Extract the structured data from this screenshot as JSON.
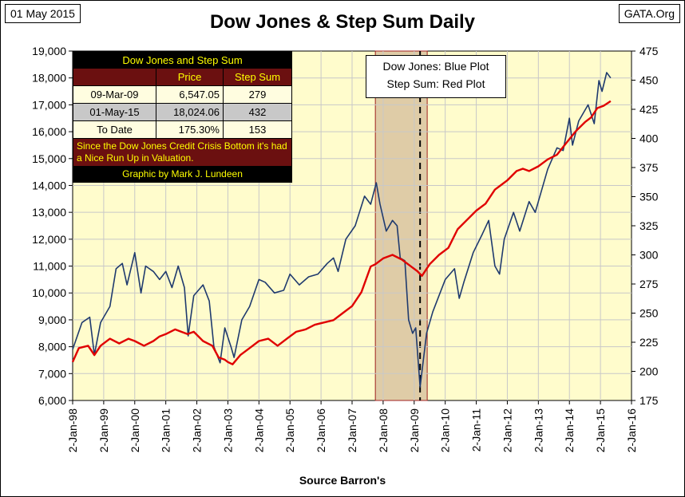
{
  "header": {
    "date": "01 May 2015",
    "source_site": "GATA.Org"
  },
  "footer": {
    "source": "Source Barron's"
  },
  "legend": {
    "line1": "Dow Jones: Blue Plot",
    "line2": "Step Sum: Red Plot"
  },
  "info_table": {
    "title": "Dow Jones and Step Sum",
    "headers": [
      "",
      "Price",
      "Step Sum"
    ],
    "rows": [
      [
        "09-Mar-09",
        "6,547.05",
        "279"
      ],
      [
        "01-May-15",
        "18,024.06",
        "432"
      ],
      [
        "To Date",
        "175.30%",
        "153"
      ]
    ],
    "note": "Since the Dow Jones Credit Crisis Bottom it's had a Nice Run Up in Valuation.",
    "credit": "Graphic by Mark J. Lundeen"
  },
  "chart_data": {
    "type": "line",
    "title": "Dow Jones & Step Sum Daily",
    "xlabel": "Source Barron's",
    "x_ticks": [
      "2-Jan-98",
      "2-Jan-99",
      "2-Jan-00",
      "2-Jan-01",
      "2-Jan-02",
      "2-Jan-03",
      "2-Jan-04",
      "2-Jan-05",
      "2-Jan-06",
      "2-Jan-07",
      "2-Jan-08",
      "2-Jan-09",
      "2-Jan-10",
      "2-Jan-11",
      "2-Jan-12",
      "2-Jan-13",
      "2-Jan-14",
      "2-Jan-15",
      "2-Jan-16"
    ],
    "y_left": {
      "min": 6000,
      "max": 19000,
      "ticks": [
        "6,000",
        "7,000",
        "8,000",
        "9,000",
        "10,000",
        "11,000",
        "12,000",
        "13,000",
        "14,000",
        "15,000",
        "16,000",
        "17,000",
        "18,000",
        "19,000"
      ]
    },
    "y_right": {
      "min": 175,
      "max": 475,
      "ticks": [
        "175",
        "200",
        "225",
        "250",
        "275",
        "300",
        "325",
        "350",
        "375",
        "400",
        "425",
        "450",
        "475"
      ]
    },
    "shaded_period": {
      "start": 2007.75,
      "end": 2009.42,
      "bottom_marker": 2009.19
    },
    "series": [
      {
        "axis": "left",
        "color": "#1f3a6e",
        "points": [
          [
            1998.0,
            7900
          ],
          [
            1998.3,
            8900
          ],
          [
            1998.55,
            9100
          ],
          [
            1998.7,
            7700
          ],
          [
            1998.9,
            8900
          ],
          [
            1999.2,
            9500
          ],
          [
            1999.4,
            10900
          ],
          [
            1999.6,
            11100
          ],
          [
            1999.75,
            10300
          ],
          [
            2000.0,
            11500
          ],
          [
            2000.2,
            10000
          ],
          [
            2000.35,
            11000
          ],
          [
            2000.6,
            10800
          ],
          [
            2000.8,
            10500
          ],
          [
            2001.0,
            10800
          ],
          [
            2001.2,
            10200
          ],
          [
            2001.4,
            11000
          ],
          [
            2001.6,
            10200
          ],
          [
            2001.72,
            8400
          ],
          [
            2001.9,
            9900
          ],
          [
            2002.2,
            10300
          ],
          [
            2002.4,
            9700
          ],
          [
            2002.55,
            8000
          ],
          [
            2002.75,
            7400
          ],
          [
            2002.9,
            8700
          ],
          [
            2003.1,
            8000
          ],
          [
            2003.2,
            7600
          ],
          [
            2003.45,
            9000
          ],
          [
            2003.7,
            9500
          ],
          [
            2004.0,
            10500
          ],
          [
            2004.2,
            10400
          ],
          [
            2004.5,
            10000
          ],
          [
            2004.8,
            10100
          ],
          [
            2005.0,
            10700
          ],
          [
            2005.3,
            10300
          ],
          [
            2005.6,
            10600
          ],
          [
            2005.9,
            10700
          ],
          [
            2006.2,
            11100
          ],
          [
            2006.4,
            11300
          ],
          [
            2006.55,
            10800
          ],
          [
            2006.8,
            12000
          ],
          [
            2007.1,
            12500
          ],
          [
            2007.4,
            13600
          ],
          [
            2007.6,
            13300
          ],
          [
            2007.78,
            14100
          ],
          [
            2007.9,
            13300
          ],
          [
            2008.1,
            12300
          ],
          [
            2008.3,
            12700
          ],
          [
            2008.45,
            12500
          ],
          [
            2008.55,
            11300
          ],
          [
            2008.7,
            11200
          ],
          [
            2008.82,
            9000
          ],
          [
            2008.95,
            8500
          ],
          [
            2009.05,
            8700
          ],
          [
            2009.19,
            6500
          ],
          [
            2009.4,
            8500
          ],
          [
            2009.6,
            9300
          ],
          [
            2009.8,
            9900
          ],
          [
            2010.0,
            10500
          ],
          [
            2010.3,
            10900
          ],
          [
            2010.45,
            9800
          ],
          [
            2010.6,
            10400
          ],
          [
            2010.9,
            11500
          ],
          [
            2011.2,
            12200
          ],
          [
            2011.4,
            12700
          ],
          [
            2011.6,
            11000
          ],
          [
            2011.75,
            10700
          ],
          [
            2011.9,
            12000
          ],
          [
            2012.2,
            13000
          ],
          [
            2012.4,
            12300
          ],
          [
            2012.7,
            13400
          ],
          [
            2012.9,
            13000
          ],
          [
            2013.0,
            13400
          ],
          [
            2013.3,
            14600
          ],
          [
            2013.6,
            15400
          ],
          [
            2013.8,
            15300
          ],
          [
            2014.0,
            16500
          ],
          [
            2014.1,
            15500
          ],
          [
            2014.3,
            16400
          ],
          [
            2014.6,
            17000
          ],
          [
            2014.8,
            16300
          ],
          [
            2014.95,
            17900
          ],
          [
            2015.05,
            17500
          ],
          [
            2015.2,
            18200
          ],
          [
            2015.33,
            18000
          ]
        ]
      },
      {
        "axis": "right",
        "color": "#e00000",
        "points": [
          [
            1998.0,
            208
          ],
          [
            1998.2,
            220
          ],
          [
            1998.5,
            222
          ],
          [
            1998.7,
            214
          ],
          [
            1998.9,
            222
          ],
          [
            1999.2,
            228
          ],
          [
            1999.5,
            224
          ],
          [
            1999.8,
            228
          ],
          [
            2000.0,
            226
          ],
          [
            2000.3,
            222
          ],
          [
            2000.6,
            226
          ],
          [
            2000.8,
            230
          ],
          [
            2001.0,
            232
          ],
          [
            2001.3,
            236
          ],
          [
            2001.5,
            234
          ],
          [
            2001.7,
            232
          ],
          [
            2001.9,
            234
          ],
          [
            2002.2,
            226
          ],
          [
            2002.5,
            222
          ],
          [
            2002.7,
            212
          ],
          [
            2002.9,
            210
          ],
          [
            2003.0,
            208
          ],
          [
            2003.15,
            206
          ],
          [
            2003.4,
            214
          ],
          [
            2003.7,
            220
          ],
          [
            2004.0,
            226
          ],
          [
            2004.3,
            228
          ],
          [
            2004.6,
            222
          ],
          [
            2004.9,
            228
          ],
          [
            2005.2,
            234
          ],
          [
            2005.5,
            236
          ],
          [
            2005.8,
            240
          ],
          [
            2006.1,
            242
          ],
          [
            2006.4,
            244
          ],
          [
            2006.7,
            250
          ],
          [
            2007.0,
            256
          ],
          [
            2007.3,
            268
          ],
          [
            2007.6,
            290
          ],
          [
            2007.75,
            292
          ],
          [
            2008.0,
            297
          ],
          [
            2008.3,
            300
          ],
          [
            2008.6,
            296
          ],
          [
            2008.9,
            290
          ],
          [
            2009.1,
            286
          ],
          [
            2009.25,
            282
          ],
          [
            2009.5,
            292
          ],
          [
            2009.8,
            300
          ],
          [
            2010.1,
            306
          ],
          [
            2010.4,
            322
          ],
          [
            2010.7,
            330
          ],
          [
            2011.0,
            338
          ],
          [
            2011.3,
            344
          ],
          [
            2011.6,
            356
          ],
          [
            2011.8,
            360
          ],
          [
            2012.0,
            364
          ],
          [
            2012.3,
            372
          ],
          [
            2012.5,
            374
          ],
          [
            2012.7,
            372
          ],
          [
            2013.0,
            376
          ],
          [
            2013.3,
            382
          ],
          [
            2013.6,
            386
          ],
          [
            2013.9,
            396
          ],
          [
            2014.2,
            406
          ],
          [
            2014.5,
            414
          ],
          [
            2014.7,
            418
          ],
          [
            2014.9,
            426
          ],
          [
            2015.1,
            428
          ],
          [
            2015.33,
            432
          ]
        ]
      }
    ]
  }
}
